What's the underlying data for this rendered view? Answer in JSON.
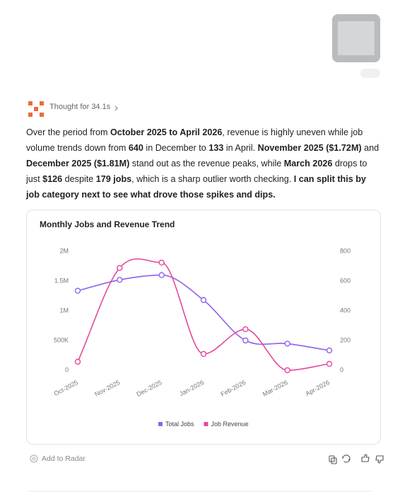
{
  "thought": "Thought for 34.1s",
  "message": {
    "segments": [
      {
        "text": "Over the period from "
      },
      {
        "text": "October 2025 to April 2026",
        "bold": true
      },
      {
        "text": ", revenue is highly uneven while job volume trends down from "
      },
      {
        "text": "640",
        "bold": true
      },
      {
        "text": " in December to "
      },
      {
        "text": "133",
        "bold": true
      },
      {
        "text": " in April. "
      },
      {
        "text": "November 2025 ($1.72M)",
        "bold": true
      },
      {
        "text": " and "
      },
      {
        "text": "December 2025 ($1.81M)",
        "bold": true
      },
      {
        "text": " stand out as the revenue peaks, while "
      },
      {
        "text": "March 2026",
        "bold": true
      },
      {
        "text": " drops to just "
      },
      {
        "text": "$126",
        "bold": true
      },
      {
        "text": " despite "
      },
      {
        "text": "179 jobs",
        "bold": true
      },
      {
        "text": ", which is a sharp outlier worth checking. "
      },
      {
        "text": "I can split this by job category next to see what drove those spikes and dips.",
        "bold": true
      }
    ]
  },
  "chart_data": {
    "type": "line",
    "title": "Monthly Jobs and Revenue Trend",
    "categories": [
      "Oct-2025",
      "Nov-2025",
      "Dec-2025",
      "Jan-2026",
      "Feb-2026",
      "Mar-2026",
      "Apr-2026"
    ],
    "series": [
      {
        "name": "Total Jobs",
        "color": "#8b63ea",
        "axis": "y2",
        "values": [
          535,
          608,
          640,
          472,
          200,
          179,
          133
        ]
      },
      {
        "name": "Job Revenue",
        "color": "#e5489b",
        "values": [
          143000,
          1720000,
          1810000,
          274000,
          690000,
          126,
          107000
        ]
      }
    ],
    "ylim": [
      0,
      2000000
    ],
    "yticks": [
      0,
      {
        "value": 500000,
        "label": "500K"
      },
      {
        "value": 1000000,
        "label": "1M"
      },
      {
        "value": 1500000,
        "label": "1.5M"
      },
      {
        "value": 2000000,
        "label": "2M"
      }
    ],
    "y2lim": [
      0,
      800
    ],
    "y2ticks": [
      0,
      200,
      400,
      600,
      800
    ],
    "grid": false,
    "legend": "bottom"
  },
  "footer": {
    "action": "Add to Radar"
  }
}
